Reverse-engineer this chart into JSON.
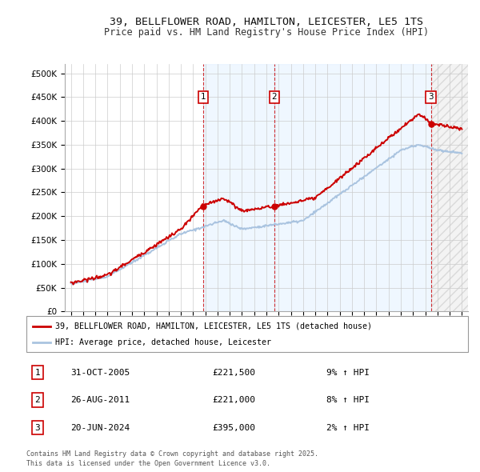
{
  "title_line1": "39, BELLFLOWER ROAD, HAMILTON, LEICESTER, LE5 1TS",
  "title_line2": "Price paid vs. HM Land Registry's House Price Index (HPI)",
  "background_color": "#ffffff",
  "grid_color": "#cccccc",
  "hpi_line_color": "#aac4e0",
  "price_line_color": "#cc0000",
  "sale_marker_color": "#cc0000",
  "shade_color": "#ddeeff",
  "purchases": [
    {
      "label": "1",
      "date_str": "31-OCT-2005",
      "date_x": 2005.83,
      "price": 221500,
      "hpi_pct": "9% ↑ HPI"
    },
    {
      "label": "2",
      "date_str": "26-AUG-2011",
      "date_x": 2011.65,
      "price": 221000,
      "hpi_pct": "8% ↑ HPI"
    },
    {
      "label": "3",
      "date_str": "20-JUN-2024",
      "date_x": 2024.47,
      "price": 395000,
      "hpi_pct": "2% ↑ HPI"
    }
  ],
  "legend_label_price": "39, BELLFLOWER ROAD, HAMILTON, LEICESTER, LE5 1TS (detached house)",
  "legend_label_hpi": "HPI: Average price, detached house, Leicester",
  "footer_line1": "Contains HM Land Registry data © Crown copyright and database right 2025.",
  "footer_line2": "This data is licensed under the Open Government Licence v3.0.",
  "ylim": [
    0,
    520000
  ],
  "yticks": [
    0,
    50000,
    100000,
    150000,
    200000,
    250000,
    300000,
    350000,
    400000,
    450000,
    500000
  ],
  "xmin": 1994.5,
  "xmax": 2027.5
}
